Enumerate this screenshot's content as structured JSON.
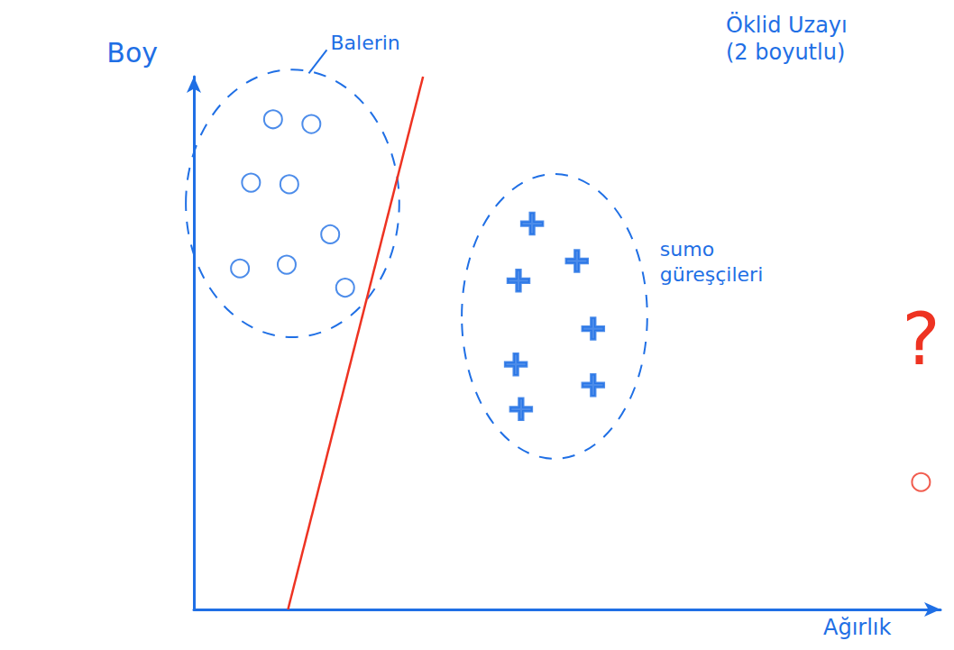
{
  "chart_data": {
    "type": "scatter",
    "title": "Öklid Uzayı (2 boyutlu)",
    "x_label": "Ağırlık",
    "y_label": "Boy",
    "xlim": [
      0,
      115
    ],
    "ylim": [
      0,
      100
    ],
    "grid": false,
    "tick_labels": false,
    "series": [
      {
        "name": "Balerin",
        "color": "#1f6fe5",
        "marker": "o",
        "x": [
          12.2,
          18.1,
          8.8,
          14.7,
          21.0,
          7.1,
          14.3,
          23.3
        ],
        "values": [
          92.0,
          91.1,
          80.1,
          79.8,
          70.4,
          64.0,
          64.7,
          60.4
        ]
      },
      {
        "name": "sumo güreşçileri",
        "color": "#1f6fe5",
        "marker": "+",
        "x": [
          52.1,
          50.0,
          59.0,
          61.5,
          49.6,
          61.5,
          50.4
        ],
        "values": [
          72.4,
          61.7,
          65.4,
          52.7,
          46.0,
          42.1,
          37.6
        ]
      },
      {
        "type": "line",
        "color": "#ee3322",
        "line_style": "solid",
        "x": [
          14.5,
          35.3
        ],
        "values": [
          0,
          100
        ]
      },
      {
        "color": "#ee3322",
        "marker": "o",
        "x": [
          112
        ],
        "values": [
          23.9
        ]
      }
    ],
    "annotations": [
      {
        "text": "?",
        "x": 112,
        "y": 50.7
      }
    ]
  }
}
